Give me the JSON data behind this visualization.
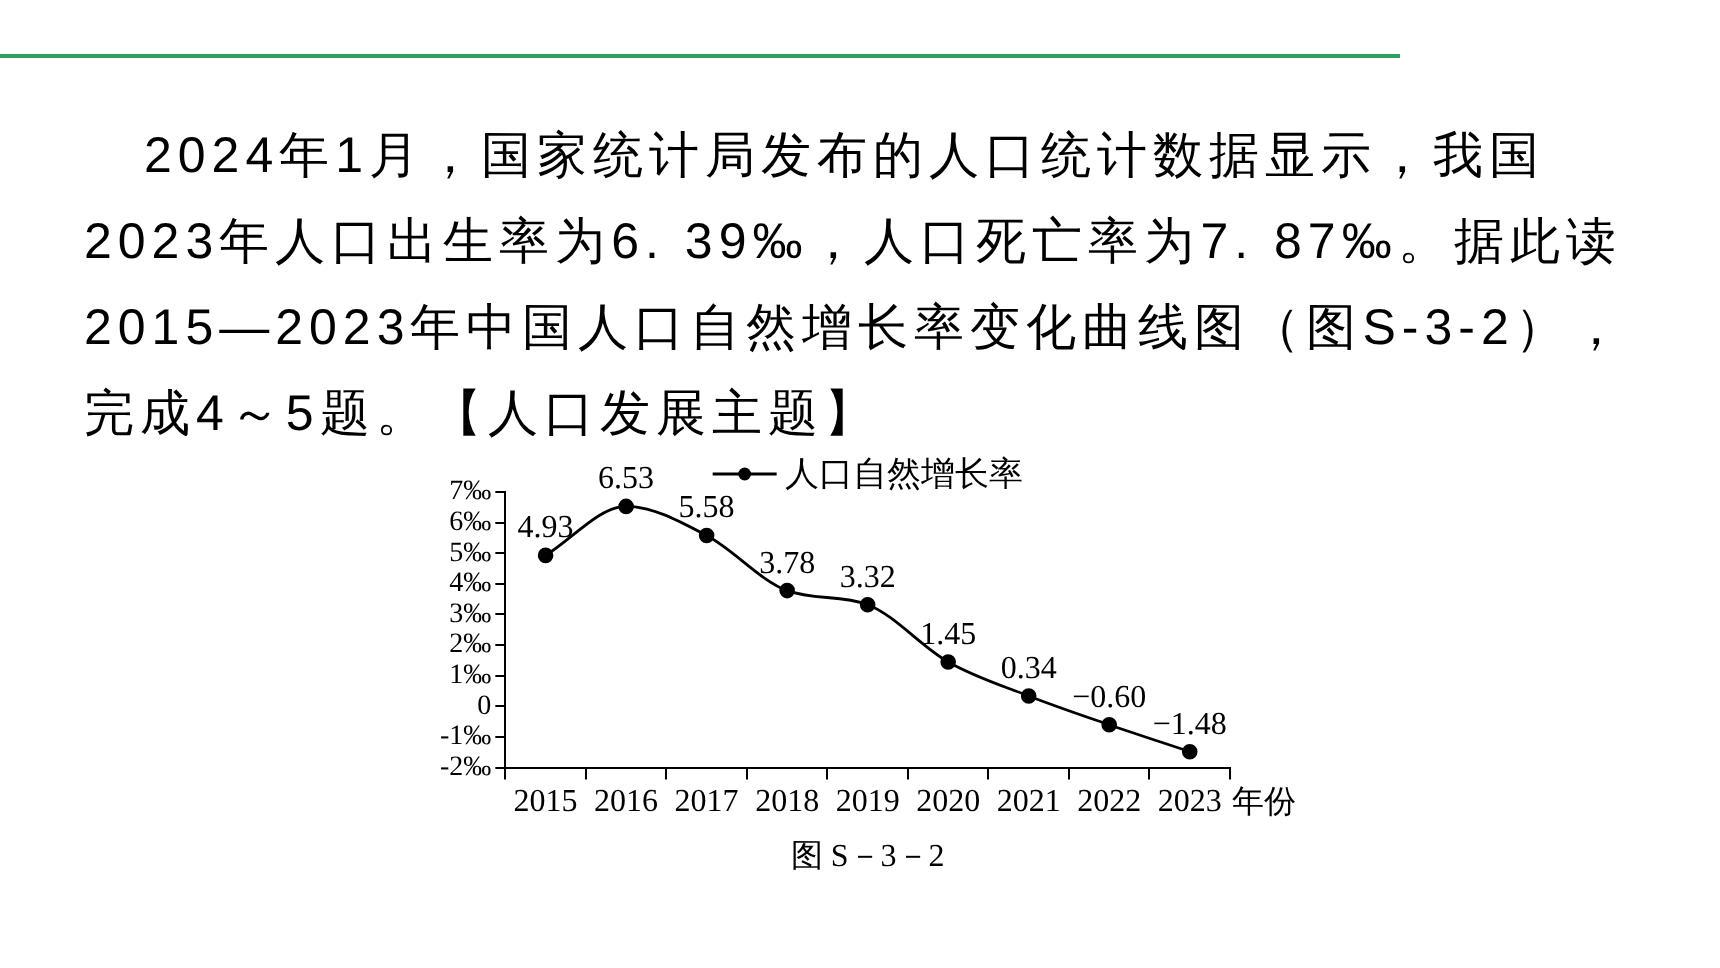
{
  "chart_data": {
    "type": "line",
    "title": "2024年1月，国家统计局发布的人口统计数据显示，我国2023年人口出生率为6. 39‰，人口死亡率为7. 87‰。据此读2015—2023年中国人口自然增长率变化曲线图（图S-3-2），完成4～5题。【人口发展主题】",
    "xlabel": "年份",
    "categories": [
      "2015",
      "2016",
      "2017",
      "2018",
      "2019",
      "2020",
      "2021",
      "2022",
      "2023"
    ],
    "series": [
      {
        "name": "人口自然增长率",
        "color": "#000000",
        "values": [
          4.93,
          6.53,
          5.58,
          3.78,
          3.32,
          1.45,
          0.34,
          -0.6,
          -1.48
        ],
        "value_labels": [
          "4.93",
          "6.53",
          "5.58",
          "3.78",
          "3.32",
          "1.45",
          "0.34",
          "−0.60",
          "−1.48"
        ]
      }
    ],
    "ylim": [
      -2,
      7
    ],
    "yticks": [
      {
        "value": 7,
        "label": "7‰"
      },
      {
        "value": 6,
        "label": "6‰"
      },
      {
        "value": 5,
        "label": "5‰"
      },
      {
        "value": 4,
        "label": "4‰"
      },
      {
        "value": 3,
        "label": "3‰"
      },
      {
        "value": 2,
        "label": "2‰"
      },
      {
        "value": 1,
        "label": "1‰"
      },
      0,
      {
        "value": -1,
        "label": "-1‰"
      },
      {
        "value": -2,
        "label": "-2‰"
      }
    ],
    "grid": false,
    "legend": "top",
    "marker": "circle",
    "line_style": "solid",
    "annotations": [
      "图 S－3－2"
    ]
  }
}
